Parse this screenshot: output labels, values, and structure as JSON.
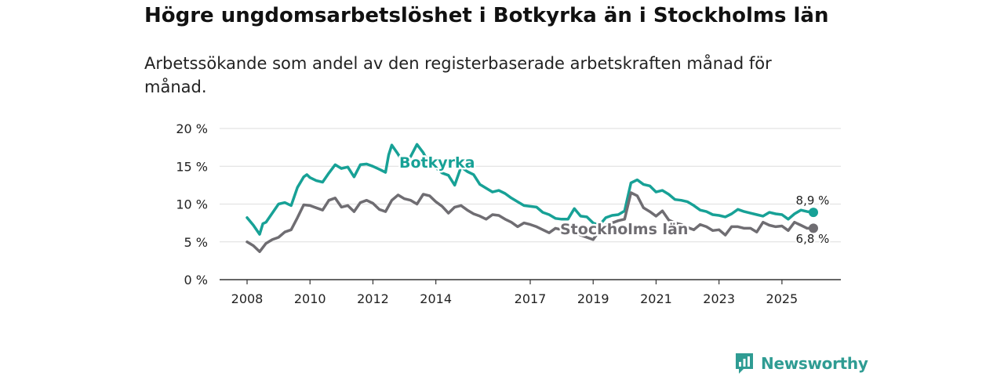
{
  "chart_data": {
    "type": "line",
    "title": "Högre ungdomsarbetslöshet i Botkyrka än i Stockholms län",
    "subtitle": "Arbetssökande som andel av den registerbaserade arbetskraften månad för månad.",
    "xlabel": "",
    "ylabel": "",
    "xlim": [
      2008,
      2026.5
    ],
    "ylim": [
      0,
      20
    ],
    "x_ticks": [
      {
        "value": 2008,
        "label": "2008"
      },
      {
        "value": 2010,
        "label": "2010"
      },
      {
        "value": 2012,
        "label": "2012"
      },
      {
        "value": 2014,
        "label": "2014"
      },
      {
        "value": 2017,
        "label": "2017"
      },
      {
        "value": 2019,
        "label": "2019"
      },
      {
        "value": 2021,
        "label": "2021"
      },
      {
        "value": 2023,
        "label": "2023"
      },
      {
        "value": 2025,
        "label": "2025"
      }
    ],
    "y_ticks": [
      {
        "value": 0,
        "label": "0 %"
      },
      {
        "value": 5,
        "label": "5 %"
      },
      {
        "value": 10,
        "label": "10 %"
      },
      {
        "value": 15,
        "label": "15 %"
      },
      {
        "value": 20,
        "label": "20 %"
      }
    ],
    "grid": true,
    "series": [
      {
        "name": "Botkyrka",
        "label": "Botkyrka",
        "color": "#17a196",
        "end_label": "8,9 %",
        "x": [
          2008.0,
          2008.2,
          2008.4,
          2008.5,
          2008.6,
          2008.8,
          2009.0,
          2009.2,
          2009.4,
          2009.6,
          2009.8,
          2009.9,
          2010.0,
          2010.2,
          2010.4,
          2010.6,
          2010.8,
          2011.0,
          2011.2,
          2011.4,
          2011.6,
          2011.8,
          2012.0,
          2012.2,
          2012.4,
          2012.5,
          2012.6,
          2012.8,
          2013.0,
          2013.2,
          2013.4,
          2013.6,
          2013.8,
          2014.0,
          2014.2,
          2014.4,
          2014.6,
          2014.8,
          2015.0,
          2015.2,
          2015.4,
          2015.6,
          2015.8,
          2016.0,
          2016.2,
          2016.4,
          2016.6,
          2016.8,
          2017.0,
          2017.2,
          2017.4,
          2017.6,
          2017.8,
          2018.0,
          2018.2,
          2018.4,
          2018.6,
          2018.8,
          2019.0,
          2019.2,
          2019.4,
          2019.6,
          2019.8,
          2020.0,
          2020.2,
          2020.4,
          2020.6,
          2020.8,
          2021.0,
          2021.2,
          2021.4,
          2021.6,
          2021.8,
          2022.0,
          2022.2,
          2022.4,
          2022.6,
          2022.8,
          2023.0,
          2023.2,
          2023.4,
          2023.6,
          2023.8,
          2024.0,
          2024.2,
          2024.4,
          2024.6,
          2024.8,
          2025.0,
          2025.2,
          2025.4,
          2025.6,
          2025.8,
          2026.0
        ],
        "values": [
          8.2,
          7.2,
          6.0,
          7.4,
          7.6,
          8.8,
          10.0,
          10.2,
          9.8,
          12.2,
          13.6,
          13.9,
          13.5,
          13.1,
          12.9,
          14.1,
          15.2,
          14.7,
          14.9,
          13.6,
          15.2,
          15.3,
          15.0,
          14.6,
          14.2,
          16.5,
          17.8,
          16.6,
          15.2,
          16.3,
          17.9,
          16.8,
          15.2,
          14.8,
          14.1,
          13.8,
          12.5,
          14.9,
          14.3,
          13.9,
          12.6,
          12.1,
          11.6,
          11.8,
          11.4,
          10.8,
          10.3,
          9.8,
          9.7,
          9.6,
          8.9,
          8.6,
          8.1,
          8.0,
          8.0,
          9.4,
          8.4,
          8.3,
          7.5,
          7.2,
          8.2,
          8.5,
          8.6,
          9.1,
          12.8,
          13.2,
          12.6,
          12.4,
          11.6,
          11.8,
          11.3,
          10.6,
          10.5,
          10.3,
          9.8,
          9.2,
          9.0,
          8.6,
          8.5,
          8.3,
          8.7,
          9.3,
          9.0,
          8.8,
          8.6,
          8.4,
          8.9,
          8.7,
          8.6,
          8.0,
          8.7,
          9.2,
          9.0,
          8.9
        ]
      },
      {
        "name": "Stockholms län",
        "label": "Stockholms län",
        "color": "#6f6d72",
        "end_label": "6,8 %",
        "x": [
          2008.0,
          2008.2,
          2008.4,
          2008.6,
          2008.8,
          2009.0,
          2009.2,
          2009.4,
          2009.6,
          2009.8,
          2010.0,
          2010.2,
          2010.4,
          2010.6,
          2010.8,
          2011.0,
          2011.2,
          2011.4,
          2011.6,
          2011.8,
          2012.0,
          2012.2,
          2012.4,
          2012.6,
          2012.8,
          2013.0,
          2013.2,
          2013.4,
          2013.6,
          2013.8,
          2014.0,
          2014.2,
          2014.4,
          2014.6,
          2014.8,
          2015.0,
          2015.2,
          2015.4,
          2015.6,
          2015.8,
          2016.0,
          2016.2,
          2016.4,
          2016.6,
          2016.8,
          2017.0,
          2017.2,
          2017.4,
          2017.6,
          2017.8,
          2018.0,
          2018.2,
          2018.4,
          2018.6,
          2018.8,
          2019.0,
          2019.2,
          2019.4,
          2019.6,
          2019.8,
          2020.0,
          2020.2,
          2020.4,
          2020.6,
          2020.8,
          2021.0,
          2021.2,
          2021.4,
          2021.6,
          2021.8,
          2022.0,
          2022.2,
          2022.4,
          2022.6,
          2022.8,
          2023.0,
          2023.2,
          2023.4,
          2023.6,
          2023.8,
          2024.0,
          2024.2,
          2024.4,
          2024.6,
          2024.8,
          2025.0,
          2025.2,
          2025.4,
          2025.6,
          2025.8,
          2026.0
        ],
        "values": [
          5.0,
          4.5,
          3.7,
          4.8,
          5.3,
          5.6,
          6.3,
          6.6,
          8.2,
          9.9,
          9.8,
          9.5,
          9.2,
          10.5,
          10.8,
          9.6,
          9.8,
          9.0,
          10.2,
          10.5,
          10.1,
          9.3,
          9.0,
          10.5,
          11.2,
          10.7,
          10.5,
          10.0,
          11.3,
          11.1,
          10.3,
          9.7,
          8.8,
          9.6,
          9.8,
          9.2,
          8.7,
          8.4,
          8.0,
          8.6,
          8.5,
          8.0,
          7.6,
          7.0,
          7.5,
          7.3,
          7.0,
          6.6,
          6.2,
          6.8,
          6.6,
          6.2,
          6.4,
          5.9,
          5.6,
          5.3,
          6.5,
          7.2,
          7.5,
          7.8,
          8.0,
          11.5,
          11.1,
          9.5,
          9.0,
          8.4,
          9.1,
          7.9,
          7.5,
          7.3,
          6.9,
          6.6,
          7.3,
          7.0,
          6.5,
          6.6,
          5.9,
          7.0,
          7.0,
          6.8,
          6.8,
          6.3,
          7.6,
          7.2,
          7.0,
          7.1,
          6.5,
          7.6,
          7.2,
          6.8,
          6.8
        ]
      }
    ]
  },
  "brand": {
    "name": "Newsworthy",
    "icon": "newsworthy-logo-icon",
    "color": "#2f9c93"
  }
}
